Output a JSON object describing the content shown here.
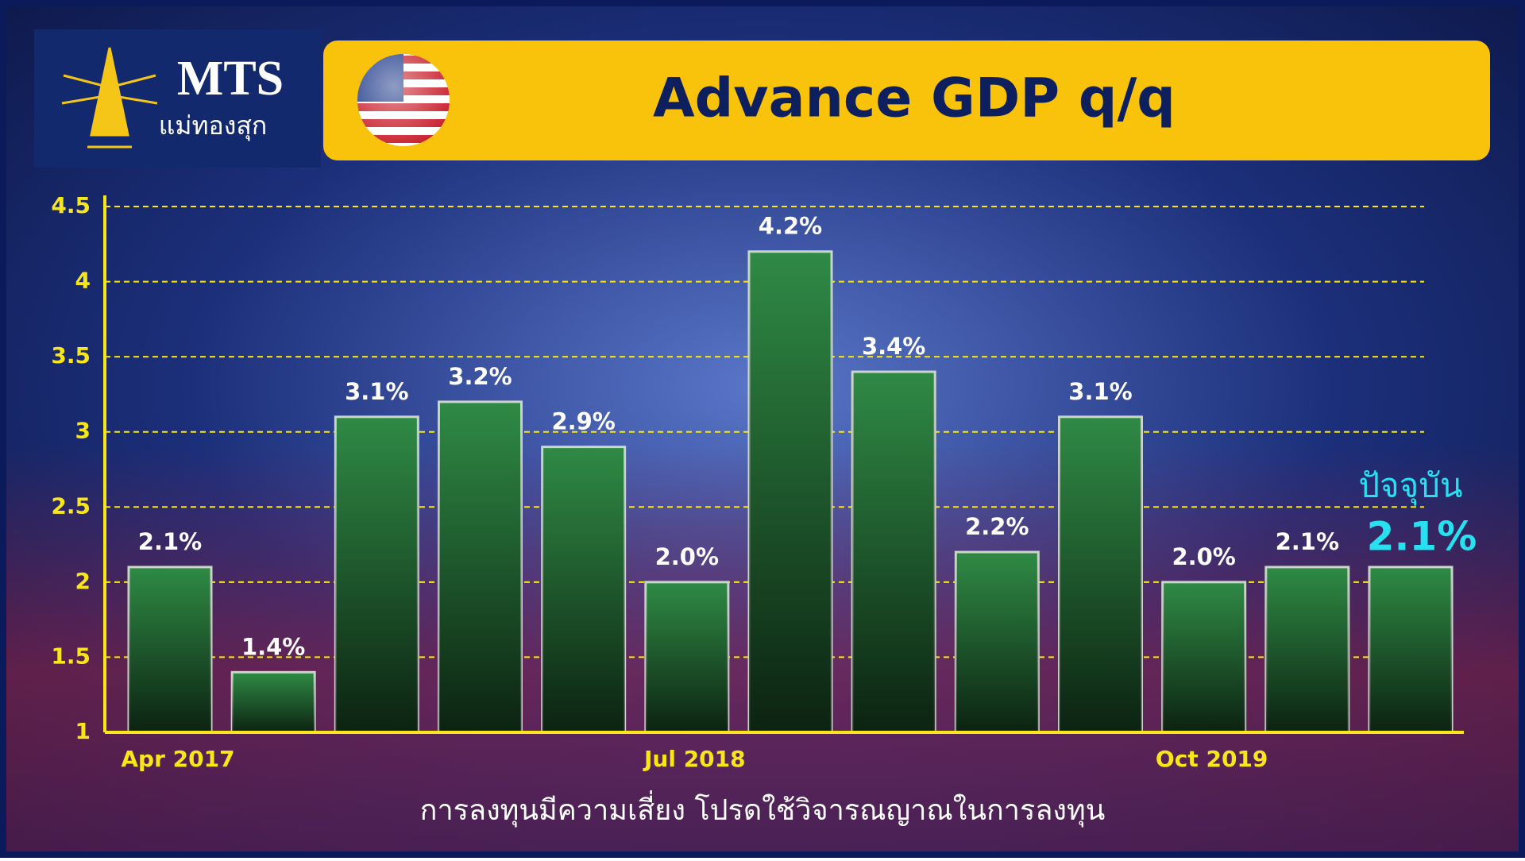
{
  "header": {
    "logo_name": "MTS",
    "logo_subtitle": "แม่ทองสุก"
  },
  "chart_data": {
    "type": "bar",
    "title": "Advance GDP q/q",
    "categories": [
      "Apr 2017",
      null,
      null,
      null,
      null,
      "Jul 2018",
      null,
      null,
      null,
      null,
      "Oct 2019",
      null,
      null
    ],
    "values": [
      2.1,
      1.4,
      3.1,
      3.2,
      2.9,
      2.0,
      4.2,
      3.4,
      2.2,
      3.1,
      2.0,
      2.1,
      2.1
    ],
    "value_labels": [
      "2.1%",
      "1.4%",
      "3.1%",
      "3.2%",
      "2.9%",
      "2.0%",
      "4.2%",
      "3.4%",
      "2.2%",
      "3.1%",
      "2.0%",
      "2.1%",
      "2.1%"
    ],
    "color": "#2f8a45",
    "ylim": [
      1,
      4.5
    ],
    "yticks": [
      1,
      1.5,
      2,
      2.5,
      3,
      3.5,
      4,
      4.5
    ],
    "grid": true,
    "annotation": "ปัจจุบัน"
  },
  "footer": "การลงทุนมีความเสี่ยง โปรดใช้วิจารณญาณในการลงทุน"
}
